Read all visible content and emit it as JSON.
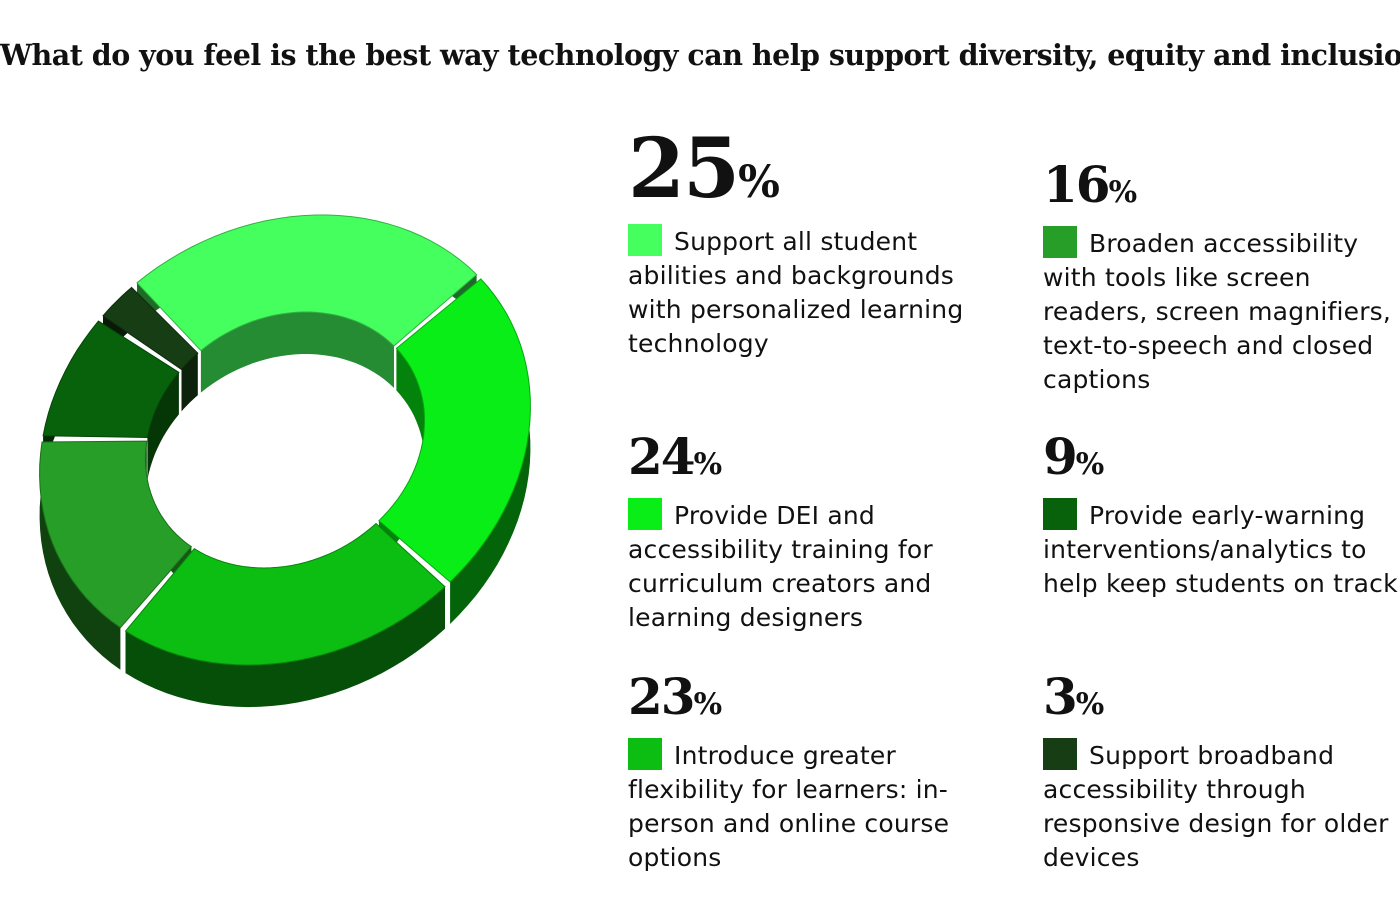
{
  "title": "What do you feel is the best way technology can help support diversity, equity and inclusion?",
  "chart_data": {
    "type": "pie",
    "title": "What do you feel is the best way technology can help support diversity, equity and inclusion?",
    "style": "3d-donut",
    "slices": [
      {
        "value": 25,
        "label": "Support all student abilities and backgrounds with personalized learning technology",
        "color": "#45ff5e"
      },
      {
        "value": 24,
        "label": "Provide DEI and accessibility training for curriculum creators and learning designers",
        "color": "#08ee16"
      },
      {
        "value": 23,
        "label": "Introduce greater flexibility for learners: in-person and online course options",
        "color": "#0cbd12"
      },
      {
        "value": 16,
        "label": "Broaden accessibility with tools like screen readers, screen magnifiers, text-to-speech and closed captions",
        "color": "#269e27"
      },
      {
        "value": 9,
        "label": "Provide early-warning interventions/analytics to help keep students on track",
        "color": "#07620b"
      },
      {
        "value": 3,
        "label": "Support broadband accessibility through responsive design for older devices",
        "color": "#163d13"
      }
    ]
  },
  "legend": [
    {
      "pct": "25",
      "sign": "%",
      "text": "Support all student abilities and backgrounds with personalized learning technology"
    },
    {
      "pct": "24",
      "sign": "%",
      "text": "Provide DEI and accessibility training for curriculum creators and learning designers"
    },
    {
      "pct": "23",
      "sign": "%",
      "text": "Introduce greater flexibility for learners: in-person and online course options"
    },
    {
      "pct": "16",
      "sign": "%",
      "text": "Broaden accessibility with tools like screen readers, screen magnifiers, text-to-speech and closed captions"
    },
    {
      "pct": "9",
      "sign": "%",
      "text": "Provide early-warning interventions/analytics to help keep students on track"
    },
    {
      "pct": "3",
      "sign": "%",
      "text": "Support broadband accessibility through responsive design for older devices"
    }
  ]
}
